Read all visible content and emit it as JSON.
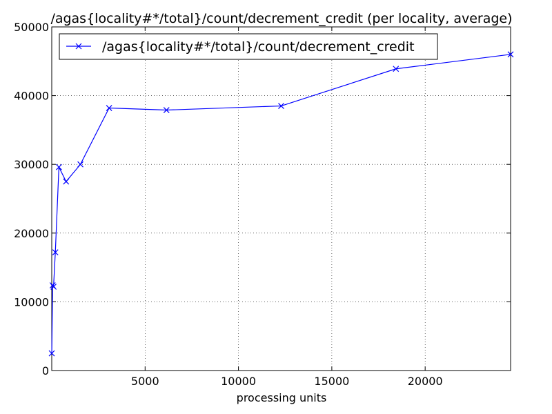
{
  "chart_data": {
    "type": "line",
    "title": "/agas{locality#*/total}/count/decrement_credit (per locality, average)",
    "xlabel": "processing units",
    "ylabel": "",
    "xlim": [
      0,
      24576
    ],
    "ylim": [
      0,
      50000
    ],
    "xticks": [
      5000,
      10000,
      15000,
      20000
    ],
    "yticks": [
      0,
      10000,
      20000,
      30000,
      40000,
      50000
    ],
    "grid": true,
    "legend_position": "top-left",
    "series": [
      {
        "name": "/agas{locality#*/total}/count/decrement_credit",
        "color": "#0000ff",
        "marker": "x",
        "x": [
          1,
          48,
          96,
          192,
          384,
          768,
          1536,
          3072,
          6144,
          12288,
          18432,
          24576
        ],
        "y": [
          2500,
          12400,
          12200,
          17200,
          29600,
          27500,
          30000,
          38200,
          37900,
          38500,
          43900,
          46000
        ]
      }
    ]
  }
}
